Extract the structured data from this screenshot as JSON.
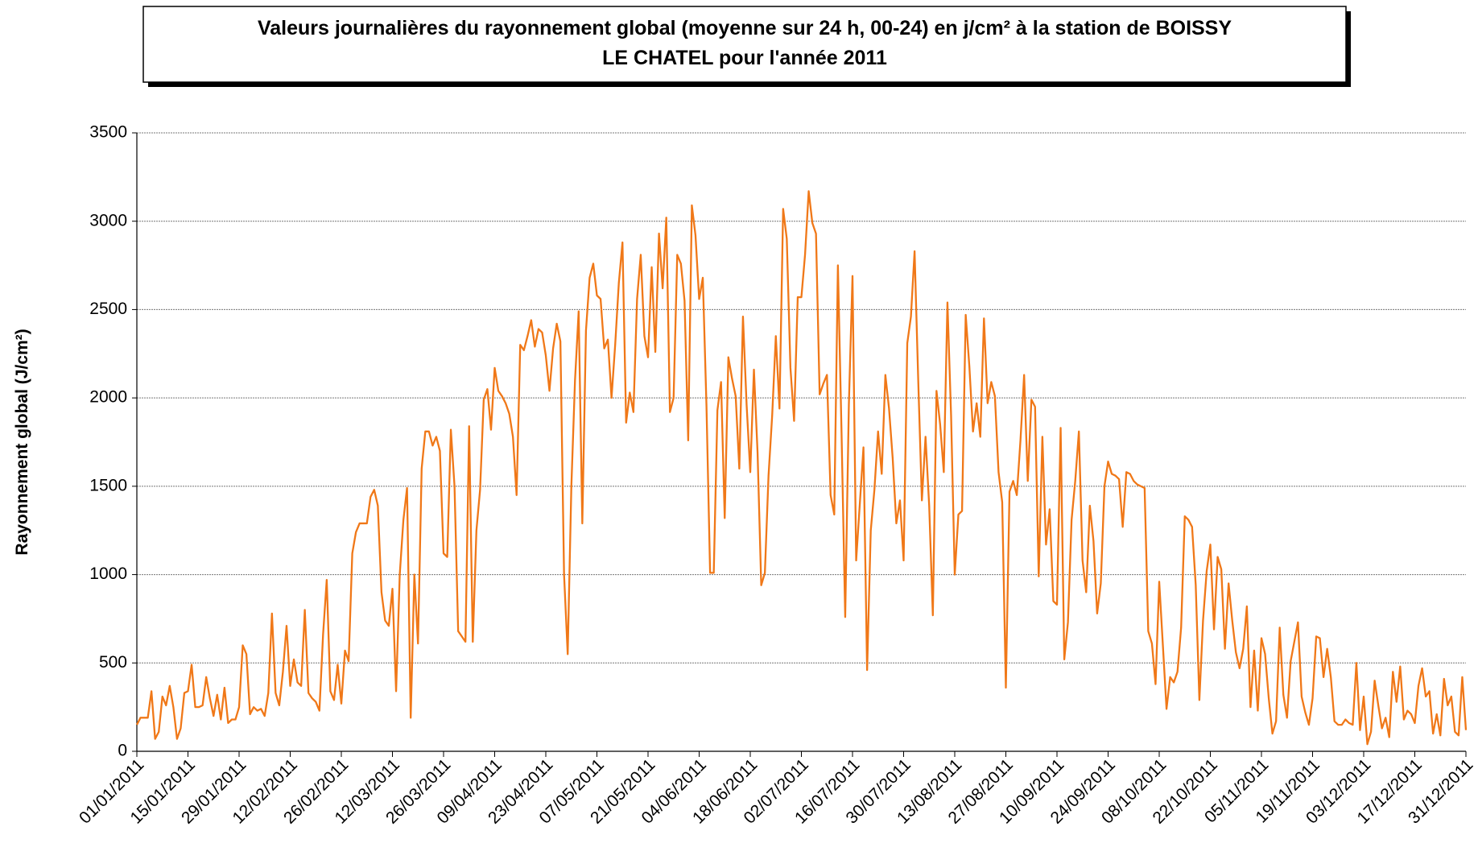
{
  "chart_data": {
    "type": "line",
    "title": [
      "Valeurs journalières du rayonnement global (moyenne sur 24 h, 00-24) en j/cm² à la station de BOISSY",
      "LE CHATEL pour l'année 2011"
    ],
    "y_label": "Rayonnement global (J/cm²)",
    "ylim": [
      0,
      3500
    ],
    "yticks": [
      0,
      500,
      1000,
      1500,
      2000,
      2500,
      3000,
      3500
    ],
    "grid": true,
    "categories": [
      "01/01/2011",
      null,
      null,
      null,
      null,
      null,
      null,
      null,
      null,
      null,
      null,
      null,
      null,
      null,
      "15/01/2011",
      null,
      null,
      null,
      null,
      null,
      null,
      null,
      null,
      null,
      null,
      null,
      null,
      null,
      "29/01/2011",
      null,
      null,
      null,
      null,
      null,
      null,
      null,
      null,
      null,
      null,
      null,
      null,
      null,
      "12/02/2011",
      null,
      null,
      null,
      null,
      null,
      null,
      null,
      null,
      null,
      null,
      null,
      null,
      null,
      "26/02/2011",
      null,
      null,
      null,
      null,
      null,
      null,
      null,
      null,
      null,
      null,
      null,
      null,
      null,
      "12/03/2011",
      null,
      null,
      null,
      null,
      null,
      null,
      null,
      null,
      null,
      null,
      null,
      null,
      null,
      "26/03/2011",
      null,
      null,
      null,
      null,
      null,
      null,
      null,
      null,
      null,
      null,
      null,
      null,
      null,
      "09/04/2011",
      null,
      null,
      null,
      null,
      null,
      null,
      null,
      null,
      null,
      null,
      null,
      null,
      null,
      "23/04/2011",
      null,
      null,
      null,
      null,
      null,
      null,
      null,
      null,
      null,
      null,
      null,
      null,
      null,
      "07/05/2011",
      null,
      null,
      null,
      null,
      null,
      null,
      null,
      null,
      null,
      null,
      null,
      null,
      null,
      "21/05/2011",
      null,
      null,
      null,
      null,
      null,
      null,
      null,
      null,
      null,
      null,
      null,
      null,
      null,
      "04/06/2011",
      null,
      null,
      null,
      null,
      null,
      null,
      null,
      null,
      null,
      null,
      null,
      null,
      null,
      "18/06/2011",
      null,
      null,
      null,
      null,
      null,
      null,
      null,
      null,
      null,
      null,
      null,
      null,
      null,
      "02/07/2011",
      null,
      null,
      null,
      null,
      null,
      null,
      null,
      null,
      null,
      null,
      null,
      null,
      null,
      "16/07/2011",
      null,
      null,
      null,
      null,
      null,
      null,
      null,
      null,
      null,
      null,
      null,
      null,
      null,
      "30/07/2011",
      null,
      null,
      null,
      null,
      null,
      null,
      null,
      null,
      null,
      null,
      null,
      null,
      null,
      "13/08/2011",
      null,
      null,
      null,
      null,
      null,
      null,
      null,
      null,
      null,
      null,
      null,
      null,
      null,
      "27/08/2011",
      null,
      null,
      null,
      null,
      null,
      null,
      null,
      null,
      null,
      null,
      null,
      null,
      null,
      "10/09/2011",
      null,
      null,
      null,
      null,
      null,
      null,
      null,
      null,
      null,
      null,
      null,
      null,
      null,
      "24/09/2011",
      null,
      null,
      null,
      null,
      null,
      null,
      null,
      null,
      null,
      null,
      null,
      null,
      null,
      "08/10/2011",
      null,
      null,
      null,
      null,
      null,
      null,
      null,
      null,
      null,
      null,
      null,
      null,
      null,
      "22/10/2011",
      null,
      null,
      null,
      null,
      null,
      null,
      null,
      null,
      null,
      null,
      null,
      null,
      null,
      "05/11/2011",
      null,
      null,
      null,
      null,
      null,
      null,
      null,
      null,
      null,
      null,
      null,
      null,
      null,
      "19/11/2011",
      null,
      null,
      null,
      null,
      null,
      null,
      null,
      null,
      null,
      null,
      null,
      null,
      null,
      "03/12/2011",
      null,
      null,
      null,
      null,
      null,
      null,
      null,
      null,
      null,
      null,
      null,
      null,
      null,
      "17/12/2011",
      null,
      null,
      null,
      null,
      null,
      null,
      null,
      null,
      null,
      null,
      null,
      null,
      null,
      "31/12/2011"
    ],
    "series": [
      {
        "color": "#f07818",
        "values": [
          150,
          190,
          190,
          190,
          340,
          70,
          110,
          310,
          260,
          370,
          250,
          70,
          130,
          330,
          340,
          490,
          250,
          250,
          260,
          420,
          300,
          200,
          320,
          180,
          360,
          160,
          180,
          180,
          250,
          600,
          550,
          210,
          250,
          230,
          240,
          200,
          330,
          780,
          330,
          260,
          450,
          710,
          370,
          520,
          390,
          370,
          800,
          330,
          300,
          280,
          230,
          660,
          970,
          340,
          290,
          490,
          270,
          570,
          510,
          1120,
          1240,
          1290,
          1290,
          1290,
          1440,
          1480,
          1390,
          900,
          740,
          710,
          920,
          340,
          1000,
          1310,
          1490,
          190,
          1000,
          610,
          1600,
          1810,
          1810,
          1730,
          1780,
          1700,
          1120,
          1100,
          1820,
          1500,
          680,
          650,
          620,
          1840,
          620,
          1250,
          1480,
          1990,
          2050,
          1820,
          2170,
          2040,
          2010,
          1970,
          1910,
          1780,
          1450,
          2300,
          2270,
          2350,
          2440,
          2290,
          2390,
          2370,
          2240,
          2040,
          2280,
          2420,
          2320,
          1000,
          550,
          1500,
          2100,
          2490,
          1290,
          2380,
          2680,
          2760,
          2580,
          2560,
          2280,
          2330,
          2000,
          2300,
          2650,
          2880,
          1860,
          2030,
          1920,
          2560,
          2810,
          2350,
          2230,
          2740,
          2260,
          2930,
          2620,
          3020,
          1920,
          2000,
          2810,
          2760,
          2550,
          1760,
          3090,
          2920,
          2560,
          2680,
          1960,
          1010,
          1010,
          1930,
          2090,
          1320,
          2230,
          2110,
          2010,
          1600,
          2460,
          1960,
          1580,
          2160,
          1690,
          940,
          1010,
          1560,
          1900,
          2350,
          1940,
          3070,
          2900,
          2170,
          1870,
          2570,
          2570,
          2810,
          3170,
          2990,
          2930,
          2020,
          2080,
          2130,
          1450,
          1340,
          2750,
          1800,
          760,
          1960,
          2690,
          1080,
          1400,
          1720,
          460,
          1250,
          1480,
          1810,
          1570,
          2130,
          1940,
          1660,
          1290,
          1420,
          1080,
          2310,
          2460,
          2830,
          2100,
          1420,
          1780,
          1390,
          770,
          2040,
          1850,
          1580,
          2540,
          1900,
          1000,
          1340,
          1360,
          2470,
          2180,
          1810,
          1970,
          1780,
          2450,
          1970,
          2090,
          2010,
          1580,
          1410,
          360,
          1470,
          1530,
          1450,
          1760,
          2130,
          1530,
          1990,
          1950,
          990,
          1780,
          1170,
          1370,
          850,
          830,
          1830,
          520,
          730,
          1310,
          1530,
          1810,
          1080,
          900,
          1390,
          1190,
          780,
          950,
          1500,
          1640,
          1570,
          1560,
          1540,
          1270,
          1580,
          1570,
          1530,
          1510,
          1500,
          1490,
          680,
          610,
          380,
          960,
          600,
          240,
          420,
          390,
          450,
          700,
          1330,
          1310,
          1270,
          940,
          290,
          740,
          1020,
          1170,
          690,
          1100,
          1030,
          580,
          950,
          740,
          560,
          470,
          580,
          820,
          250,
          570,
          230,
          640,
          550,
          300,
          100,
          170,
          700,
          320,
          190,
          510,
          620,
          730,
          310,
          220,
          150,
          300,
          650,
          640,
          420,
          580,
          420,
          170,
          150,
          150,
          180,
          160,
          150,
          500,
          120,
          310,
          40,
          110,
          400,
          260,
          130,
          190,
          80,
          450,
          280,
          480,
          180,
          230,
          210,
          160,
          370,
          470,
          310,
          340,
          100,
          210,
          90,
          410,
          260,
          310,
          110,
          90,
          420,
          120
        ]
      }
    ]
  }
}
